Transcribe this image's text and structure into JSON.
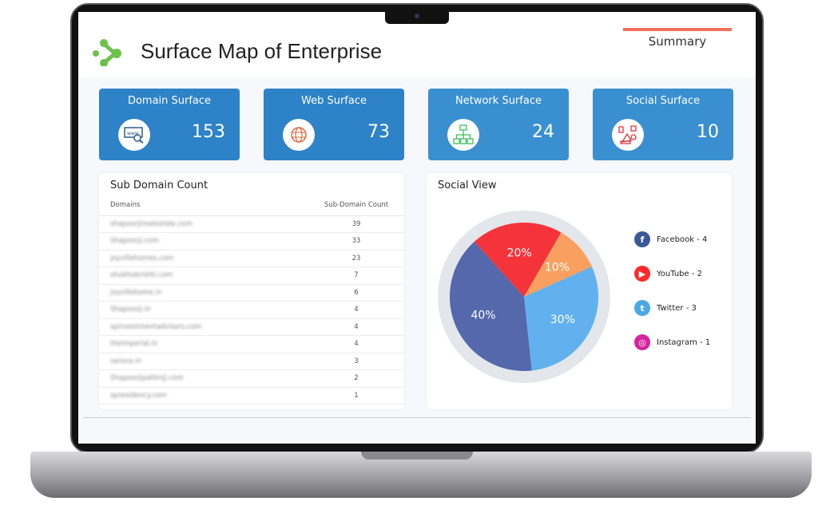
{
  "header": {
    "title": "Surface Map of Enterprise",
    "tab": "Summary"
  },
  "cards": [
    {
      "label": "Domain Surface",
      "value": "153",
      "icon": "www-search-icon"
    },
    {
      "label": "Web Surface",
      "value": "73",
      "icon": "globe-icon"
    },
    {
      "label": "Network Surface",
      "value": "24",
      "icon": "network-icon"
    },
    {
      "label": "Social Surface",
      "value": "10",
      "icon": "social-media-icon"
    }
  ],
  "subdomain": {
    "title": "Sub Domain Count",
    "columns": [
      "Domains",
      "Sub-Domain Count"
    ],
    "rows": [
      [
        "shapoorjirealestate.com",
        "39"
      ],
      [
        "Shapoorji.com",
        "33"
      ],
      [
        "joyvillehomes.com",
        "23"
      ],
      [
        "shukhobrishti.com",
        "7"
      ],
      [
        "joyvillehome.in",
        "6"
      ],
      [
        "Shapoorji.in",
        "4"
      ],
      [
        "spinvestmentadvisors.com",
        "4"
      ],
      [
        "theimperial.in",
        "4"
      ],
      [
        "sarova.in",
        "3"
      ],
      [
        "Shapoorjipallonji.com",
        "2"
      ],
      [
        "spresidency.com",
        "1"
      ]
    ]
  },
  "social": {
    "title": "Social View",
    "legend": [
      {
        "label": "Facebook - 4",
        "color": "#3b5998"
      },
      {
        "label": "YouTube - 2",
        "color": "#ff2a2a"
      },
      {
        "label": "Twitter - 3",
        "color": "#4aa8e8"
      },
      {
        "label": "Instagram - 1",
        "color": "#d6249f"
      }
    ],
    "slices": [
      {
        "label": "20%",
        "value": 20,
        "color": "#f5333a"
      },
      {
        "label": "10%",
        "value": 10,
        "color": "#f9a060"
      },
      {
        "label": "30%",
        "value": 30,
        "color": "#62b1ee"
      },
      {
        "label": "40%",
        "value": 40,
        "color": "#5468ab"
      }
    ]
  }
}
